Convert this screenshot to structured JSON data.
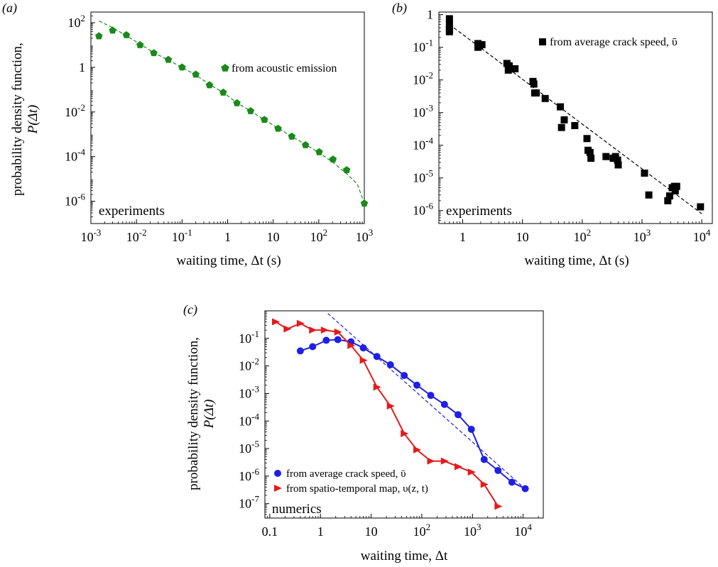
{
  "chart_data": [
    {
      "panel_label": "(a)",
      "type": "scatter",
      "xlabel": "waiting time, Δt (s)",
      "ylabel_line1": "probability density function,",
      "ylabel_line2": "P(Δt)",
      "xscale": "log",
      "yscale": "log",
      "xlim": [
        0.001,
        1000
      ],
      "ylim": [
        1e-07,
        300
      ],
      "x_ticks": [
        {
          "v": 0.001,
          "label": "10",
          "exp": "-3"
        },
        {
          "v": 0.01,
          "label": "10",
          "exp": "-2"
        },
        {
          "v": 0.1,
          "label": "10",
          "exp": "-1"
        },
        {
          "v": 1,
          "label": "1",
          "exp": ""
        },
        {
          "v": 10,
          "label": "10",
          "exp": ""
        },
        {
          "v": 100,
          "label": "10",
          "exp": "2"
        },
        {
          "v": 1000,
          "label": "10",
          "exp": "3"
        }
      ],
      "y_ticks": [
        {
          "v": 1e-06,
          "label": "10",
          "exp": "-6"
        },
        {
          "v": 0.0001,
          "label": "10",
          "exp": "-4"
        },
        {
          "v": 0.01,
          "label": "10",
          "exp": "-2"
        },
        {
          "v": 1,
          "label": "1",
          "exp": ""
        },
        {
          "v": 100,
          "label": "10",
          "exp": "2"
        }
      ],
      "annotation": "experiments",
      "legend_position": "top-right",
      "series": [
        {
          "name": "from acoustic emission",
          "marker": "pentagon",
          "color": "#1a8a1a",
          "x": [
            0.0015,
            0.003,
            0.006,
            0.012,
            0.024,
            0.05,
            0.1,
            0.2,
            0.4,
            0.8,
            1.6,
            3.2,
            6.4,
            12.8,
            25.6,
            51.2,
            102,
            205,
            410,
            1000
          ],
          "y": [
            25,
            45,
            28,
            10,
            4.4,
            2.2,
            1.0,
            0.48,
            0.16,
            0.075,
            0.025,
            0.011,
            0.0045,
            0.0018,
            0.0008,
            0.00033,
            0.00016,
            7.5e-05,
            2.5e-05,
            8e-07
          ]
        },
        {
          "name": "",
          "type": "line",
          "style": "dashed",
          "color": "#1a8a1a",
          "x": [
            0.0015,
            0.003,
            0.006,
            0.012,
            0.024,
            0.05,
            0.1,
            0.2,
            0.4,
            0.8,
            1.6,
            3.2,
            6.4,
            12.8,
            25.6,
            51.2,
            102,
            205,
            410,
            700,
            1000
          ],
          "y": [
            120,
            60,
            26,
            11,
            4.6,
            2.1,
            1.0,
            0.46,
            0.17,
            0.075,
            0.026,
            0.011,
            0.0045,
            0.0019,
            0.0008,
            0.00035,
            0.00015,
            5.5e-05,
            1.7e-05,
            6e-06,
            8e-07
          ]
        }
      ]
    },
    {
      "panel_label": "(b)",
      "type": "scatter",
      "xlabel": "waiting time, Δt (s)",
      "xscale": "log",
      "yscale": "log",
      "xlim": [
        0.4,
        15000
      ],
      "ylim": [
        4e-07,
        1.2
      ],
      "x_ticks": [
        {
          "v": 1,
          "label": "1",
          "exp": ""
        },
        {
          "v": 10,
          "label": "10",
          "exp": ""
        },
        {
          "v": 100,
          "label": "10",
          "exp": "2"
        },
        {
          "v": 1000,
          "label": "10",
          "exp": "3"
        },
        {
          "v": 10000,
          "label": "10",
          "exp": "4"
        }
      ],
      "y_ticks": [
        {
          "v": 1,
          "label": "1",
          "exp": ""
        },
        {
          "v": 0.1,
          "label": "10",
          "exp": "-1"
        },
        {
          "v": 0.01,
          "label": "10",
          "exp": "-2"
        },
        {
          "v": 0.001,
          "label": "10",
          "exp": "-3"
        },
        {
          "v": 0.0001,
          "label": "10",
          "exp": "-4"
        },
        {
          "v": 1e-05,
          "label": "10",
          "exp": "-5"
        },
        {
          "v": 1e-06,
          "label": "10",
          "exp": "-6"
        }
      ],
      "annotation": "experiments",
      "legend_position": "top-right",
      "series": [
        {
          "name": "from average crack speed, ῡ",
          "marker": "square",
          "color": "#000000",
          "x": [
            0.6,
            0.6,
            0.6,
            0.6,
            1.8,
            1.8,
            1.9,
            2.1,
            5.5,
            5.8,
            6.0,
            7.5,
            15,
            15.5,
            16,
            17,
            24,
            43,
            45,
            50,
            75,
            120,
            125,
            135,
            140,
            250,
            330,
            360,
            390,
            400,
            1100,
            1300,
            2700,
            2900,
            3200,
            3500,
            3600,
            3800,
            9500
          ],
          "y": [
            0.75,
            0.5,
            0.35,
            0.3,
            0.13,
            0.1,
            0.11,
            0.12,
            0.032,
            0.02,
            0.027,
            0.022,
            0.009,
            0.0075,
            0.004,
            0.004,
            0.0027,
            0.0015,
            0.00035,
            0.0006,
            0.0004,
            0.00016,
            7e-05,
            6e-05,
            4e-05,
            4.5e-05,
            4e-05,
            4.5e-05,
            3.5e-05,
            2.5e-05,
            1.4e-05,
            3e-06,
            2e-06,
            2.8e-06,
            5e-06,
            5.5e-06,
            4e-06,
            5.5e-06,
            1.3e-06
          ]
        },
        {
          "name": "",
          "type": "line",
          "style": "dashed",
          "color": "#000000",
          "x": [
            0.6,
            10000
          ],
          "y": [
            0.5,
            8e-07
          ]
        }
      ]
    },
    {
      "panel_label": "(c)",
      "type": "line",
      "xlabel": "waiting time, Δt",
      "ylabel_line1": "probability density function,",
      "ylabel_line2": "P(Δt)",
      "xscale": "log",
      "yscale": "log",
      "xlim": [
        0.08,
        25000
      ],
      "ylim": [
        3e-08,
        1.0
      ],
      "x_ticks": [
        {
          "v": 0.1,
          "label": "0.1",
          "exp": ""
        },
        {
          "v": 1,
          "label": "1",
          "exp": ""
        },
        {
          "v": 10,
          "label": "10",
          "exp": ""
        },
        {
          "v": 100,
          "label": "10",
          "exp": "2"
        },
        {
          "v": 1000,
          "label": "10",
          "exp": "3"
        },
        {
          "v": 10000,
          "label": "10",
          "exp": "4"
        }
      ],
      "y_ticks": [
        {
          "v": 0.1,
          "label": "10",
          "exp": "-1"
        },
        {
          "v": 0.01,
          "label": "10",
          "exp": "-2"
        },
        {
          "v": 0.001,
          "label": "10",
          "exp": "-3"
        },
        {
          "v": 0.0001,
          "label": "10",
          "exp": "-4"
        },
        {
          "v": 1e-05,
          "label": "10",
          "exp": "-5"
        },
        {
          "v": 1e-06,
          "label": "10",
          "exp": "-6"
        },
        {
          "v": 1e-07,
          "label": "10",
          "exp": "-7"
        }
      ],
      "annotation": "numerics",
      "legend_position": "bottom-left",
      "series": [
        {
          "name": "from average crack speed, ῡ",
          "marker": "circle",
          "color": "#1f1fe6",
          "x": [
            0.4,
            0.7,
            1.3,
            2.2,
            4,
            7,
            13,
            24,
            45,
            80,
            150,
            280,
            520,
            950,
            1700,
            3200,
            6000,
            11000
          ],
          "y": [
            0.035,
            0.05,
            0.085,
            0.09,
            0.075,
            0.045,
            0.022,
            0.011,
            0.0045,
            0.002,
            0.00085,
            0.0004,
            0.00017,
            5e-05,
            4e-06,
            1.6e-06,
            6e-07,
            3.5e-07
          ]
        },
        {
          "name": "from spatio-temporal map, υ(z, t)",
          "marker": "triangle-right",
          "color": "#e61a1a",
          "x": [
            0.13,
            0.22,
            0.4,
            0.7,
            1.2,
            2.2,
            4,
            7,
            13,
            24,
            45,
            80,
            150,
            280,
            520,
            950,
            1700,
            3200
          ],
          "y": [
            0.4,
            0.22,
            0.35,
            0.2,
            0.2,
            0.17,
            0.055,
            0.016,
            0.0017,
            0.00035,
            3.5e-05,
            9e-06,
            3.5e-06,
            3.5e-06,
            2.2e-06,
            1.4e-06,
            5e-07,
            8e-08
          ]
        },
        {
          "name": "",
          "type": "line",
          "style": "dashed",
          "color": "#1f1fe6",
          "x": [
            1.4,
            10000
          ],
          "y": [
            0.8,
            4e-07
          ]
        }
      ]
    }
  ]
}
